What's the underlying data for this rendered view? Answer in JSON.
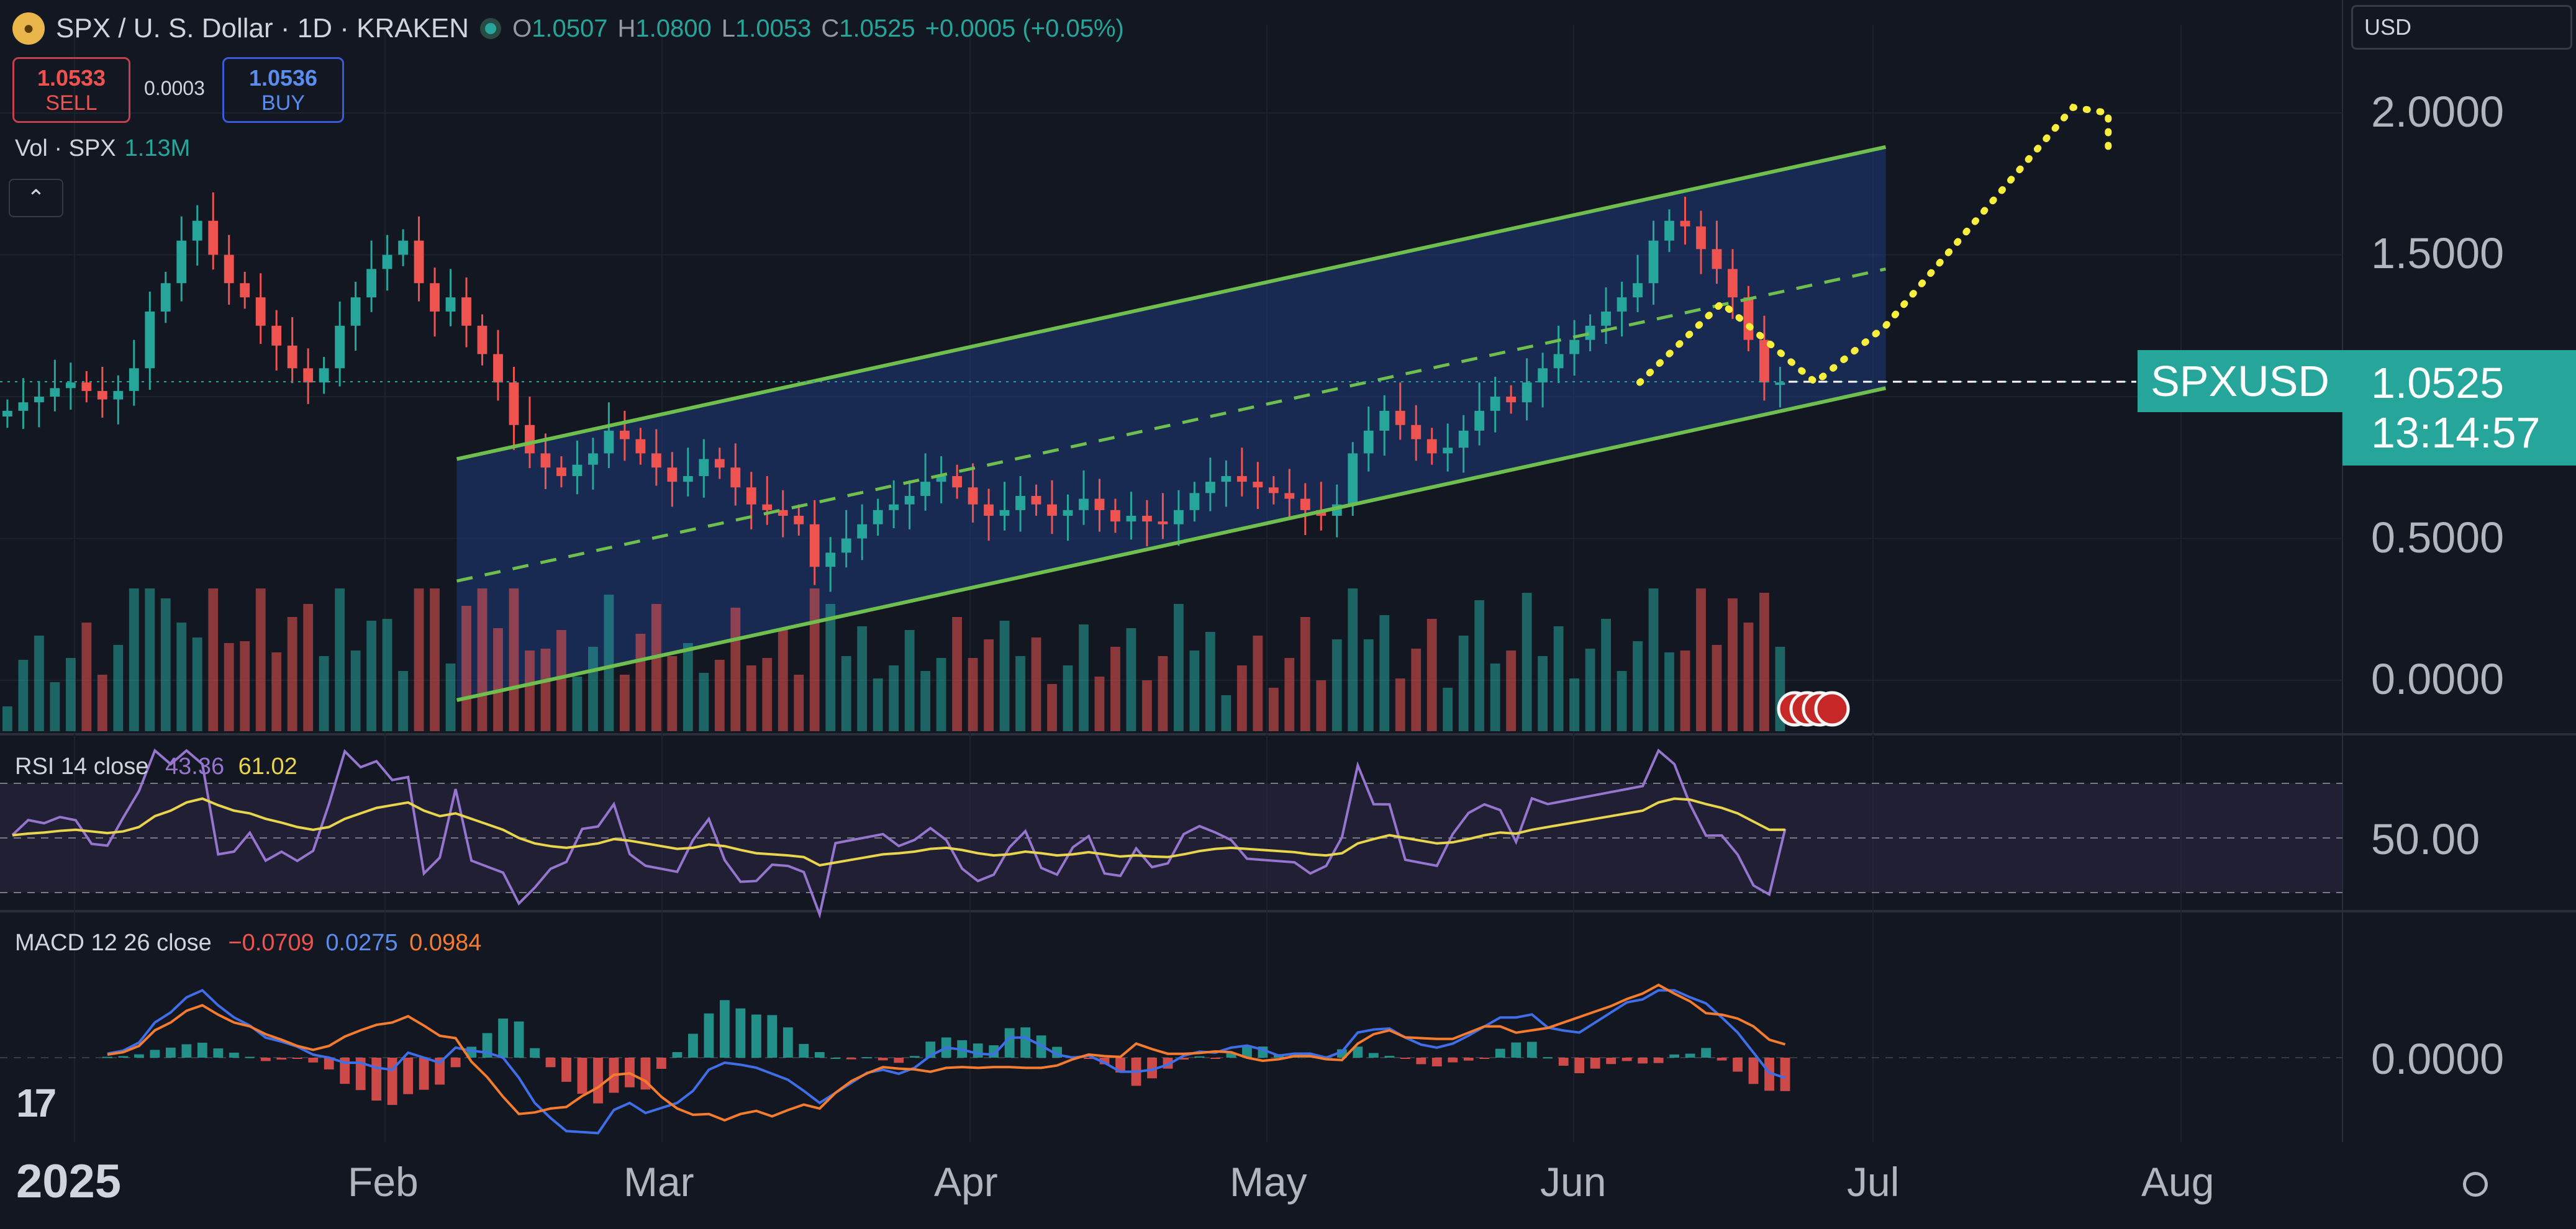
{
  "header": {
    "coin_icon": "spx-coin-icon",
    "symbol": "SPX / U. S. Dollar · 1D · KRAKEN",
    "ohlc": {
      "o_label": "O",
      "o": "1.0507",
      "h_label": "H",
      "h": "1.0800",
      "l_label": "L",
      "l": "1.0053",
      "c_label": "C",
      "c": "1.0525",
      "change": "+0.0005 (+0.05%)"
    }
  },
  "trade": {
    "sell_price": "1.0533",
    "sell_label": "SELL",
    "spread": "0.0003",
    "buy_price": "1.0536",
    "buy_label": "BUY"
  },
  "volume": {
    "label": "Vol · SPX",
    "value": "1.13M"
  },
  "currency_select": {
    "value": "USD"
  },
  "price_axis": {
    "labels": [
      "2.0000",
      "1.5000",
      "0.5000",
      "0.0000"
    ],
    "rsi_label": "50.00",
    "macd_label": "0.0000"
  },
  "last_price": {
    "symbol": "SPXUSD",
    "price": "1.0525",
    "countdown": "13:14:57"
  },
  "rsi": {
    "label": "RSI 14 close",
    "value1": "43.36",
    "value2": "61.02"
  },
  "macd": {
    "label": "MACD 12 26 close",
    "v1": "−0.0709",
    "v2": "0.0275",
    "v3": "0.0984"
  },
  "time_axis": {
    "year": "2025",
    "months": [
      "Feb",
      "Mar",
      "Apr",
      "May",
      "Jun",
      "Jul",
      "Aug"
    ]
  },
  "colors": {
    "up": "#26a69a",
    "down": "#ef5350",
    "channel": "#6fbf4e",
    "projection": "#f7ee3d",
    "rsi": "#9575cd",
    "rsi_ma": "#e8d44d",
    "macd": "#3f6fe8",
    "signal": "#f57c2e"
  },
  "chart_data": {
    "type": "candlestick",
    "title": "SPX / U. S. Dollar · 1D · KRAKEN",
    "x_ticks": [
      "2025",
      "Feb",
      "Mar",
      "Apr",
      "May",
      "Jun",
      "Jul",
      "Aug"
    ],
    "ylim": [
      -0.35,
      2.2
    ],
    "y_ticks": [
      0.0,
      0.5,
      1.5,
      2.0
    ],
    "last_close": 1.0525,
    "closes": [
      0.95,
      0.98,
      1.0,
      1.03,
      1.05,
      1.02,
      0.99,
      1.02,
      1.1,
      1.3,
      1.4,
      1.55,
      1.62,
      1.5,
      1.4,
      1.35,
      1.25,
      1.18,
      1.1,
      1.05,
      1.1,
      1.25,
      1.35,
      1.45,
      1.5,
      1.55,
      1.4,
      1.3,
      1.35,
      1.25,
      1.15,
      1.05,
      0.9,
      0.8,
      0.75,
      0.72,
      0.76,
      0.8,
      0.88,
      0.85,
      0.8,
      0.75,
      0.7,
      0.72,
      0.78,
      0.75,
      0.68,
      0.62,
      0.6,
      0.58,
      0.55,
      0.4,
      0.45,
      0.5,
      0.55,
      0.6,
      0.62,
      0.65,
      0.7,
      0.72,
      0.68,
      0.62,
      0.58,
      0.6,
      0.65,
      0.62,
      0.58,
      0.6,
      0.64,
      0.6,
      0.56,
      0.58,
      0.56,
      0.55,
      0.6,
      0.66,
      0.7,
      0.72,
      0.7,
      0.68,
      0.66,
      0.64,
      0.6,
      0.58,
      0.62,
      0.8,
      0.88,
      0.95,
      0.9,
      0.85,
      0.8,
      0.82,
      0.88,
      0.95,
      1.0,
      0.98,
      1.05,
      1.1,
      1.15,
      1.2,
      1.25,
      1.3,
      1.35,
      1.4,
      1.55,
      1.62,
      1.6,
      1.52,
      1.45,
      1.35,
      1.2,
      1.05,
      1.05
    ],
    "volume": {
      "label": "Vol · SPX",
      "last": "1.13M"
    },
    "channel": {
      "upper": [
        [
          0.195,
          0.78
        ],
        [
          0.805,
          1.88
        ]
      ],
      "lower": [
        [
          0.195,
          -0.07
        ],
        [
          0.805,
          1.03
        ]
      ],
      "mid": [
        [
          0.195,
          0.35
        ],
        [
          0.805,
          1.45
        ]
      ]
    },
    "projection": [
      [
        0.7,
        1.05
      ],
      [
        0.735,
        1.33
      ],
      [
        0.775,
        1.05
      ],
      [
        0.805,
        1.25
      ],
      [
        0.885,
        2.02
      ],
      [
        0.9,
        2.0
      ],
      [
        0.9,
        1.85
      ]
    ],
    "rsi": {
      "label": "RSI 14 close",
      "rsi": 43.36,
      "ma": 61.02,
      "bands": [
        70,
        50,
        30
      ]
    },
    "macd": {
      "label": "MACD 12 26 close",
      "histogram": -0.0709,
      "macd": 0.0275,
      "signal": 0.0984
    }
  }
}
